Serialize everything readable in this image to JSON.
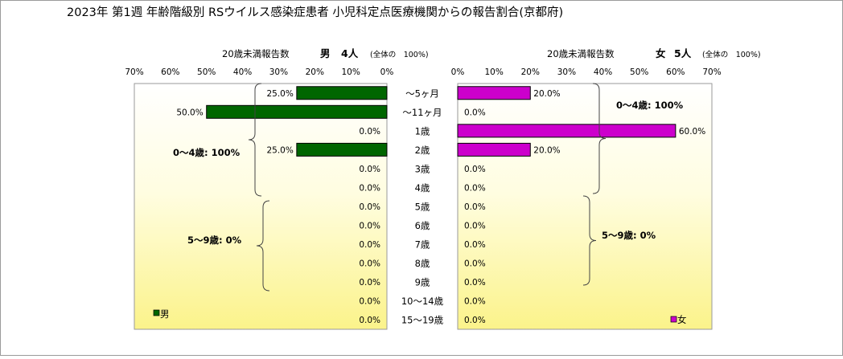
{
  "title": "2023年 第1週 年齢階級別 RSウイルス感染症患者 小児科定点医療機関からの報告割合(京都府)",
  "chart_data": [
    {
      "type": "bar",
      "side": "left",
      "orientation": "horizontal",
      "subtitle": "20歳未満報告数",
      "sex_label": "男",
      "count_label": "4人",
      "total_note": "(全体の　100%)",
      "legend_label": "男",
      "bar_color": "#006600",
      "xlim": [
        0,
        70
      ],
      "ticks": [
        "70%",
        "60%",
        "50%",
        "40%",
        "30%",
        "20%",
        "10%",
        "0%"
      ],
      "categories": [
        "～5ヶ月",
        "～11ヶ月",
        "1歳",
        "2歳",
        "3歳",
        "4歳",
        "5歳",
        "6歳",
        "7歳",
        "8歳",
        "9歳",
        "10～14歳",
        "15～19歳"
      ],
      "values": [
        25.0,
        50.0,
        0.0,
        25.0,
        0.0,
        0.0,
        0.0,
        0.0,
        0.0,
        0.0,
        0.0,
        0.0,
        0.0
      ],
      "value_labels": [
        "25.0%",
        "50.0%",
        "0.0%",
        "25.0%",
        "0.0%",
        "0.0%",
        "0.0%",
        "0.0%",
        "0.0%",
        "0.0%",
        "0.0%",
        "0.0%",
        "0.0%"
      ],
      "group_labels": [
        "0～4歳: 100%",
        "5～9歳: 0%"
      ]
    },
    {
      "type": "bar",
      "side": "right",
      "orientation": "horizontal",
      "subtitle": "20歳未満報告数",
      "sex_label": "女",
      "count_label": "5人",
      "total_note": "(全体の　100%)",
      "legend_label": "女",
      "bar_color": "#cc00cc",
      "xlim": [
        0,
        70
      ],
      "ticks": [
        "0%",
        "10%",
        "20%",
        "30%",
        "40%",
        "50%",
        "60%",
        "70%"
      ],
      "categories": [
        "～5ヶ月",
        "～11ヶ月",
        "1歳",
        "2歳",
        "3歳",
        "4歳",
        "5歳",
        "6歳",
        "7歳",
        "8歳",
        "9歳",
        "10～14歳",
        "15～19歳"
      ],
      "values": [
        20.0,
        0.0,
        60.0,
        20.0,
        0.0,
        0.0,
        0.0,
        0.0,
        0.0,
        0.0,
        0.0,
        0.0,
        0.0
      ],
      "value_labels": [
        "20.0%",
        "0.0%",
        "60.0%",
        "20.0%",
        "0.0%",
        "0.0%",
        "0.0%",
        "0.0%",
        "0.0%",
        "0.0%",
        "0.0%",
        "0.0%",
        "0.0%"
      ],
      "group_labels": [
        "0～4歳: 100%",
        "5～9歳: 0%"
      ]
    }
  ]
}
